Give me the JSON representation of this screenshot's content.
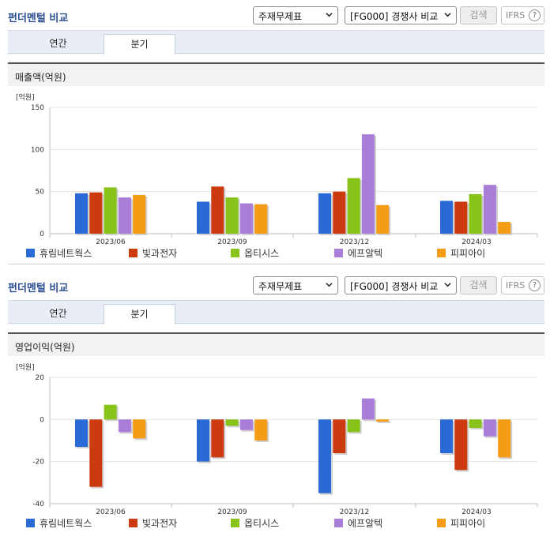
{
  "panels": [
    {
      "title": "펀더멘털 비교",
      "select1": "주재무제표",
      "select2": "[FG000] 경쟁사 비교",
      "search_label": "검색",
      "ifrs_label": "IFRS",
      "help_glyph": "?",
      "tabs": [
        "연간",
        "분기"
      ],
      "active_tab": "분기",
      "subheader": "매출액(억원)"
    },
    {
      "title": "펀더멘털 비교",
      "select1": "주재무제표",
      "select2": "[FG000] 경쟁사 비교",
      "search_label": "검색",
      "ifrs_label": "IFRS",
      "help_glyph": "?",
      "tabs": [
        "연간",
        "분기"
      ],
      "active_tab": "분기",
      "subheader": "영업이익(억원)"
    }
  ],
  "chart_data": [
    {
      "type": "bar",
      "unit_label": "[억원]",
      "categories": [
        "2023/06",
        "2023/09",
        "2023/12",
        "2024/03"
      ],
      "ylim": [
        0,
        150
      ],
      "yticks": [
        0,
        50,
        100,
        150
      ],
      "series": [
        {
          "name": "휴림네트웍스",
          "color": "#2a6ad7",
          "values": [
            48,
            38,
            48,
            39
          ]
        },
        {
          "name": "빛과전자",
          "color": "#cc3a10",
          "values": [
            49,
            56,
            50,
            38
          ]
        },
        {
          "name": "옵티시스",
          "color": "#87c319",
          "values": [
            55,
            43,
            66,
            47
          ]
        },
        {
          "name": "에프알텍",
          "color": "#a97ed9",
          "values": [
            43,
            36,
            118,
            58
          ]
        },
        {
          "name": "피피아이",
          "color": "#f59c16",
          "values": [
            46,
            35,
            34,
            14
          ]
        }
      ]
    },
    {
      "type": "bar",
      "unit_label": "[억원]",
      "categories": [
        "2023/06",
        "2023/09",
        "2023/12",
        "2024/03"
      ],
      "ylim": [
        -40,
        20
      ],
      "yticks": [
        -40,
        -20,
        0,
        20
      ],
      "series": [
        {
          "name": "휴림네트웍스",
          "color": "#2a6ad7",
          "values": [
            -13,
            -20,
            -35,
            -16
          ]
        },
        {
          "name": "빛과전자",
          "color": "#cc3a10",
          "values": [
            -32,
            -18,
            -16,
            -24
          ]
        },
        {
          "name": "옵티시스",
          "color": "#87c319",
          "values": [
            7,
            -3,
            -6,
            -4
          ]
        },
        {
          "name": "에프알텍",
          "color": "#a97ed9",
          "values": [
            -6,
            -5,
            10,
            -8
          ]
        },
        {
          "name": "피피아이",
          "color": "#f59c16",
          "values": [
            -9,
            -10,
            -1,
            -18
          ]
        }
      ]
    }
  ]
}
